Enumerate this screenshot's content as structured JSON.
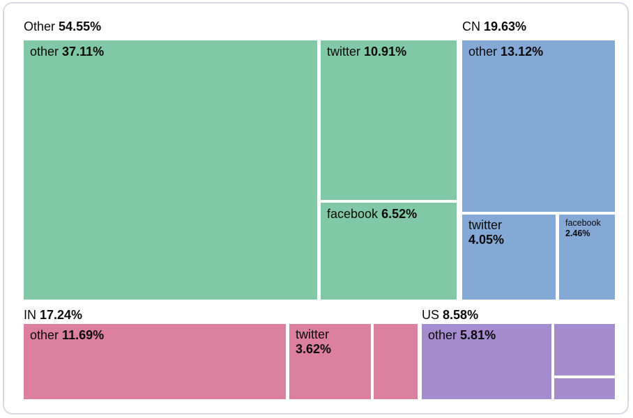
{
  "chart_data": {
    "type": "treemap",
    "legend_position": "none",
    "value_format": "percent",
    "groups": [
      {
        "label": "Other",
        "value": "54.55%",
        "color": "#80c8a6",
        "children": [
          {
            "label": "other",
            "value": "37.11%"
          },
          {
            "label": "twitter",
            "value": "10.91%"
          },
          {
            "label": "facebook",
            "value": "6.52%"
          }
        ]
      },
      {
        "label": "CN",
        "value": "19.63%",
        "color": "#85a9d7",
        "children": [
          {
            "label": "other",
            "value": "13.12%"
          },
          {
            "label": "twitter",
            "value": "4.05%"
          },
          {
            "label": "facebook",
            "value": "2.46%"
          }
        ]
      },
      {
        "label": "IN",
        "value": "17.24%",
        "color": "#dd7f9e",
        "children": [
          {
            "label": "other",
            "value": "11.69%"
          },
          {
            "label": "twitter",
            "value": "3.62%"
          },
          {
            "label": "",
            "value": ""
          }
        ]
      },
      {
        "label": "US",
        "value": "8.58%",
        "color": "#a58ccf",
        "children": [
          {
            "label": "other",
            "value": "5.81%"
          },
          {
            "label": "",
            "value": ""
          },
          {
            "label": "",
            "value": ""
          }
        ]
      }
    ]
  }
}
